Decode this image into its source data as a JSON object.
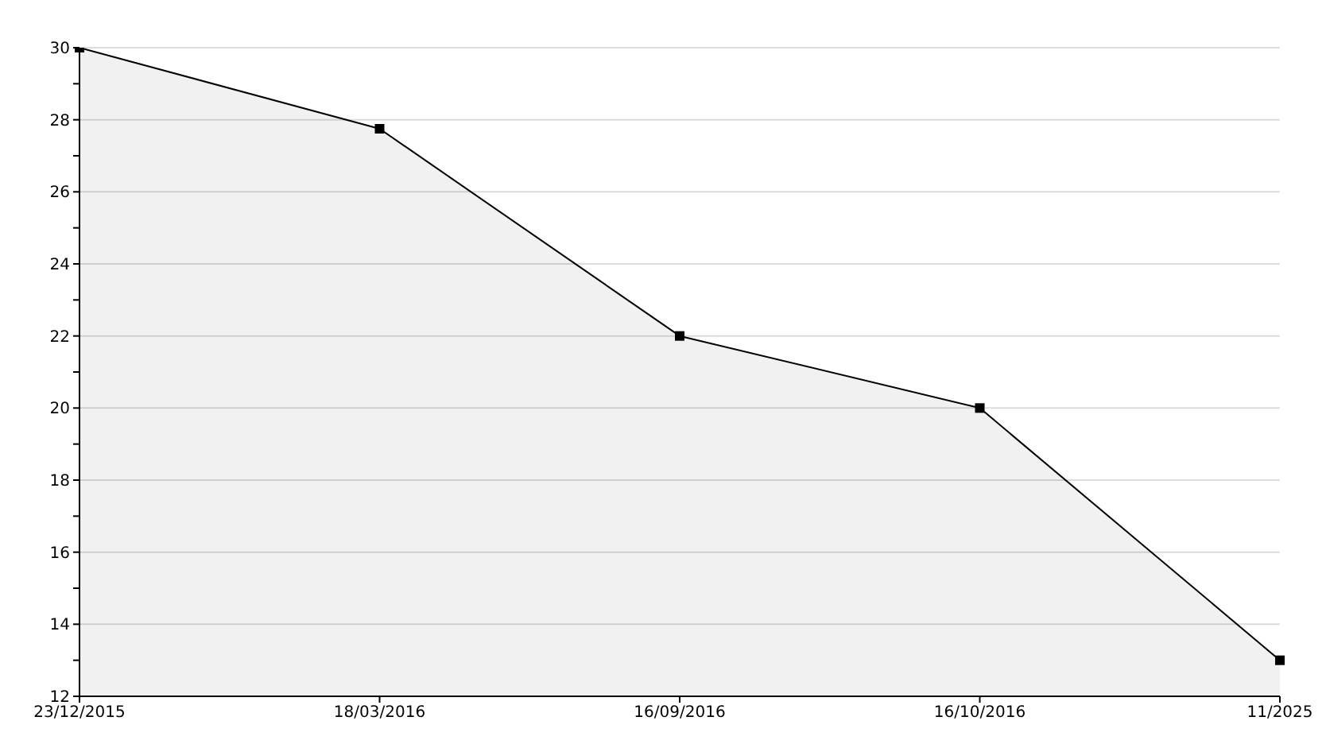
{
  "chart_data": {
    "type": "area",
    "categories": [
      "23/12/2015",
      "18/03/2016",
      "16/09/2016",
      "16/10/2016",
      "11/2025"
    ],
    "values": [
      30,
      27.75,
      22,
      20,
      13
    ],
    "color": "#000000",
    "ylim": [
      12,
      30
    ],
    "yticks": [
      12,
      {
        "value": 13,
        "label": null
      },
      14,
      {
        "value": 15,
        "label": null
      },
      16,
      {
        "value": 17,
        "label": null
      },
      18,
      {
        "value": 19,
        "label": null
      },
      20,
      {
        "value": 21,
        "label": null
      },
      22,
      {
        "value": 23,
        "label": null
      },
      24,
      {
        "value": 25,
        "label": null
      },
      26,
      {
        "value": 27,
        "label": null
      },
      28,
      {
        "value": 29,
        "label": null
      },
      30
    ],
    "grid": "y",
    "marker": "square",
    "line_style": "solid"
  }
}
